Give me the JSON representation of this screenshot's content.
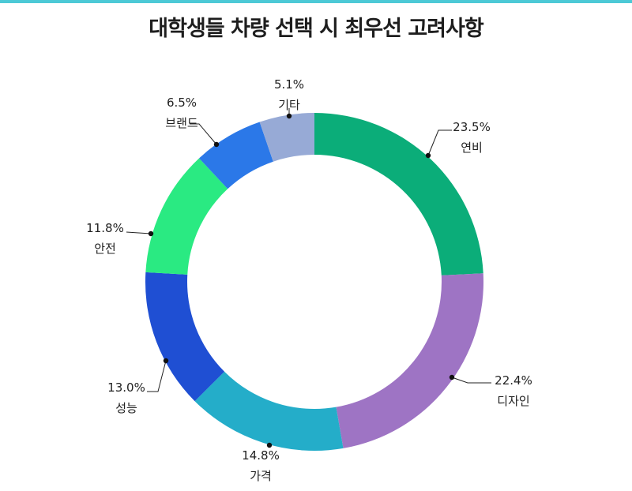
{
  "title": "대학생들 차량 선택 시 최우선 고려사항",
  "colors": {
    "top_bar": "#4cc9d6",
    "leader": "#222222",
    "dot": "#111111"
  },
  "chart_data": {
    "type": "pie",
    "donut": true,
    "title": "대학생들 차량 선택 시 최우선 고려사항",
    "slices": [
      {
        "label": "연비",
        "value": 23.5,
        "value_label": "23.5%",
        "color": "#0bad79"
      },
      {
        "label": "디자인",
        "value": 22.4,
        "value_label": "22.4%",
        "color": "#9e74c4"
      },
      {
        "label": "가격",
        "value": 14.8,
        "value_label": "14.8%",
        "color": "#24adc9"
      },
      {
        "label": "성능",
        "value": 13.0,
        "value_label": "13.0%",
        "color": "#1f4fd3"
      },
      {
        "label": "안전",
        "value": 11.8,
        "value_label": "11.8%",
        "color": "#2aea82"
      },
      {
        "label": "브랜드",
        "value": 6.5,
        "value_label": "6.5%",
        "color": "#2b78e8"
      },
      {
        "label": "기타",
        "value": 5.1,
        "value_label": "5.1%",
        "color": "#97aad6"
      }
    ],
    "start_angle_deg": 0,
    "direction": "clockwise"
  }
}
